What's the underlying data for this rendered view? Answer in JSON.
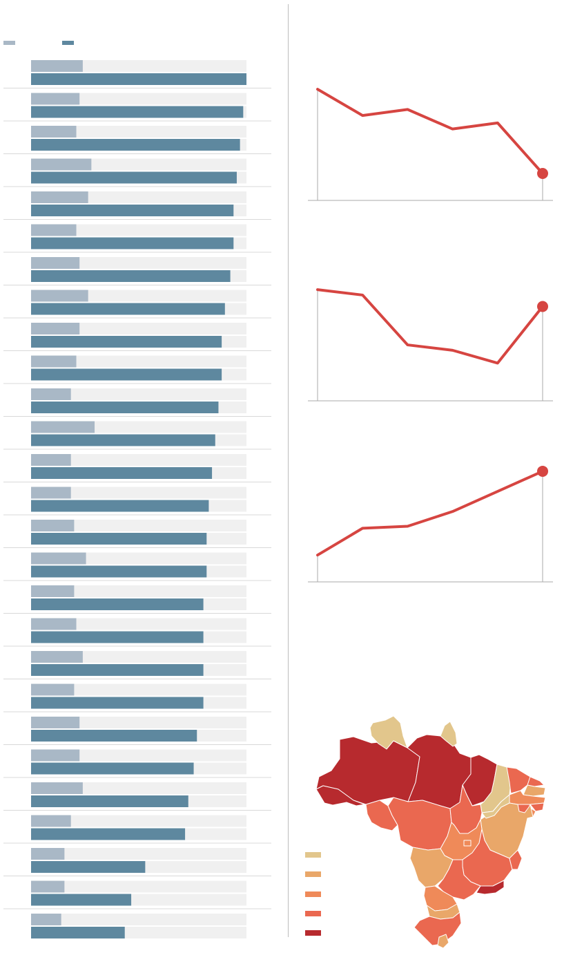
{
  "colors": {
    "bar_track": "#f0f0f0",
    "bar_secondary": "#a9b8c6",
    "bar_primary": "#5e889f",
    "row_separator": "#d8d8d8",
    "line": "#d64541",
    "axis": "#aaaaaa"
  },
  "legend": {
    "items": [
      {
        "color": "#a9b8c6"
      },
      {
        "color": "#5e889f"
      }
    ]
  },
  "chart_data": [
    {
      "type": "bar",
      "orientation": "horizontal",
      "grouped": true,
      "xlim": [
        0,
        1
      ],
      "series": [
        {
          "color": "#a9b8c6",
          "values": [
            0.24,
            0.225,
            0.21,
            0.28,
            0.265,
            0.21,
            0.225,
            0.265,
            0.225,
            0.21,
            0.185,
            0.295,
            0.185,
            0.185,
            0.2,
            0.255,
            0.2,
            0.21,
            0.24,
            0.2,
            0.225,
            0.225,
            0.24,
            0.185,
            0.155,
            0.155,
            0.14
          ]
        },
        {
          "color": "#5e889f",
          "values": [
            1.0,
            0.985,
            0.97,
            0.955,
            0.94,
            0.94,
            0.925,
            0.9,
            0.885,
            0.885,
            0.87,
            0.855,
            0.84,
            0.825,
            0.815,
            0.815,
            0.8,
            0.8,
            0.8,
            0.8,
            0.77,
            0.755,
            0.73,
            0.715,
            0.53,
            0.465,
            0.435
          ]
        }
      ]
    },
    {
      "type": "line",
      "x": [
        1,
        2,
        3,
        4,
        5,
        6
      ],
      "y": [
        165,
        126,
        135,
        106,
        115,
        40
      ],
      "ylim": [
        0,
        200
      ],
      "highlight_last": true
    },
    {
      "type": "line",
      "x": [
        1,
        2,
        3,
        4,
        5,
        6
      ],
      "y": [
        165,
        157,
        83,
        75,
        56,
        140
      ],
      "ylim": [
        0,
        200
      ],
      "highlight_last": true
    },
    {
      "type": "line",
      "x": [
        1,
        2,
        3,
        4,
        5,
        6
      ],
      "y": [
        40,
        80,
        83,
        105,
        135,
        165
      ],
      "ylim": [
        0,
        200
      ],
      "highlight_last": true
    }
  ],
  "map": {
    "type": "choropleth",
    "region": "Brazil",
    "legend": [
      {
        "color": "#e2c68c"
      },
      {
        "color": "#e9a769"
      },
      {
        "color": "#ef8a59"
      },
      {
        "color": "#ea6850"
      },
      {
        "color": "#b72a2e"
      }
    ],
    "region_colors": [
      "#b72a2e",
      "#e2c68c",
      "#b72a2e",
      "#e2c68c",
      "#b72a2e",
      "#b72a2e",
      "#e2c68c",
      "#ea6850",
      "#ea6850",
      "#e9a769",
      "#ef8a59",
      "#ea6850",
      "#ef8a59",
      "#e9a769",
      "#ea6850",
      "#ea6850",
      "#ea6850",
      "#ef8a59",
      "#ea6850",
      "#e9a769",
      "#ea6850",
      "#ea6850",
      "#ef8a59",
      "#ef8a59",
      "#e9a769",
      "#b72a2e",
      "#e2c68c",
      "#ea6850",
      "#e9a769",
      "#ea6850"
    ]
  }
}
